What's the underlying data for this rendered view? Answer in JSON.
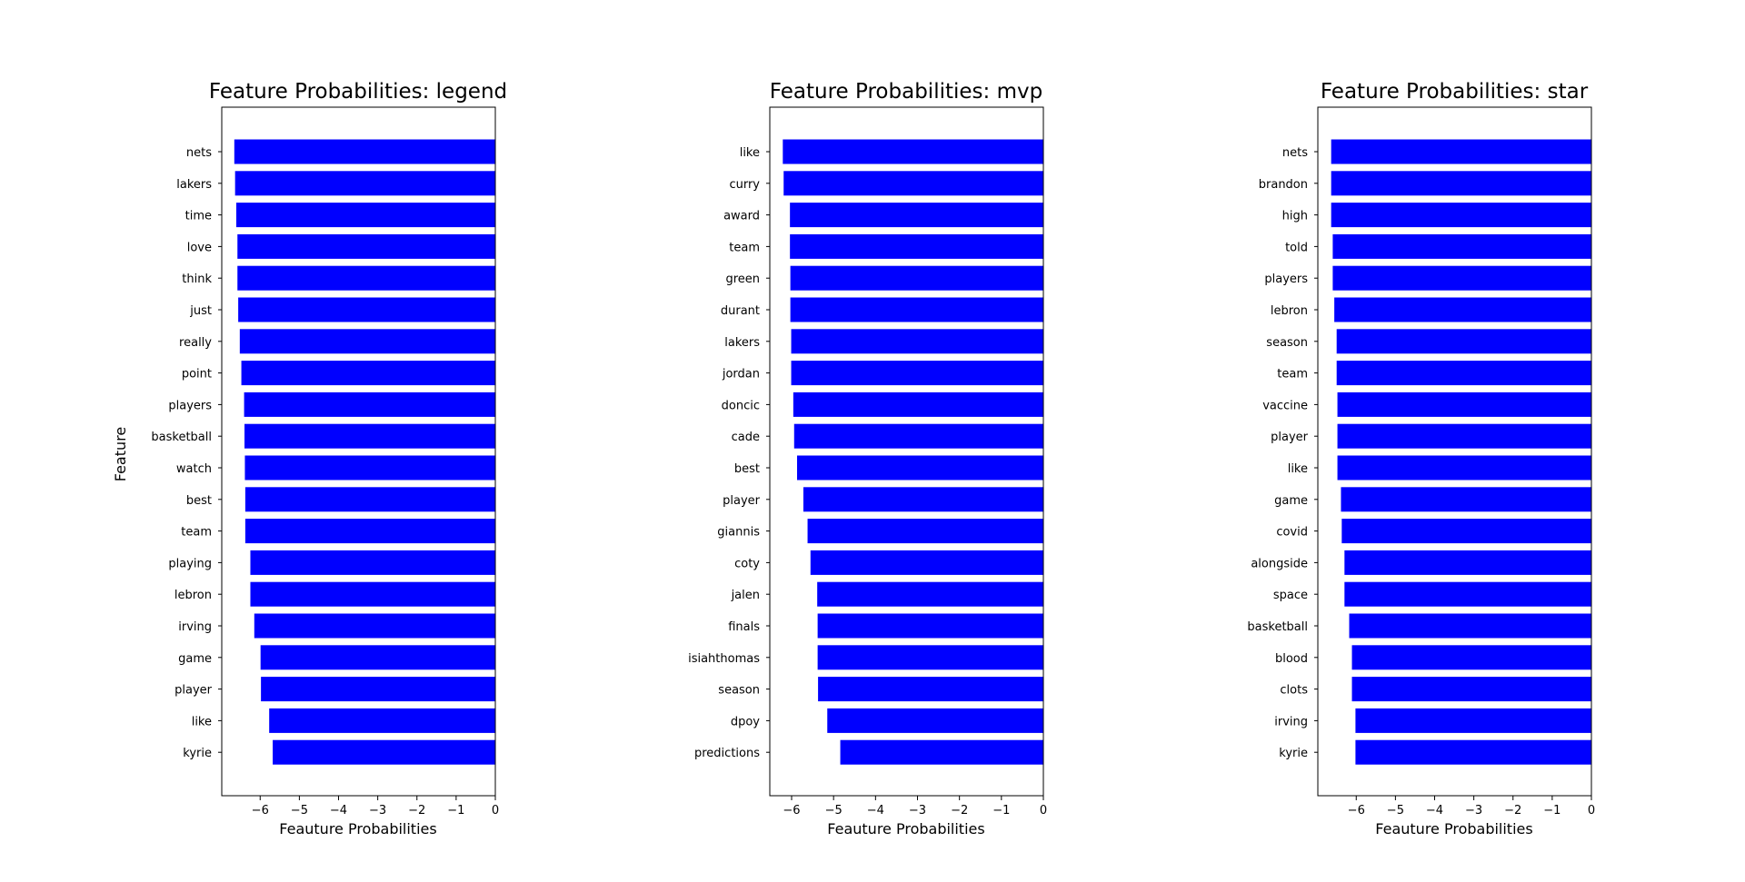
{
  "colors": {
    "bar": "#0000ff",
    "axis": "#000000",
    "background": "#ffffff"
  },
  "chart_data": [
    {
      "type": "bar",
      "orientation": "horizontal",
      "title": "Feature Probabilities: legend",
      "xlabel": "Feauture Probabilities",
      "ylabel": "Feature",
      "xlim": [
        -6.98,
        0
      ],
      "xticks": [
        -6,
        -5,
        -4,
        -3,
        -2,
        -1,
        0
      ],
      "xtick_labels": [
        "−6",
        "−5",
        "−4",
        "−3",
        "−2",
        "−1",
        "0"
      ],
      "categories": [
        "nets",
        "lakers",
        "time",
        "love",
        "think",
        "just",
        "really",
        "point",
        "players",
        "basketball",
        "watch",
        "best",
        "team",
        "playing",
        "lebron",
        "irving",
        "game",
        "player",
        "like",
        "kyrie"
      ],
      "values": [
        -6.66,
        -6.64,
        -6.61,
        -6.58,
        -6.58,
        -6.56,
        -6.52,
        -6.48,
        -6.41,
        -6.4,
        -6.39,
        -6.38,
        -6.38,
        -6.25,
        -6.25,
        -6.15,
        -5.99,
        -5.98,
        -5.77,
        -5.68
      ],
      "grid": false,
      "legend": "none"
    },
    {
      "type": "bar",
      "orientation": "horizontal",
      "title": "Feature Probabilities: mvp",
      "xlabel": "Feauture Probabilities",
      "ylabel": "",
      "xlim": [
        -6.52,
        0
      ],
      "xticks": [
        -6,
        -5,
        -4,
        -3,
        -2,
        -1,
        0
      ],
      "xtick_labels": [
        "−6",
        "−5",
        "−4",
        "−3",
        "−2",
        "−1",
        "0"
      ],
      "categories": [
        "like",
        "curry",
        "award",
        "team",
        "green",
        "durant",
        "lakers",
        "jordan",
        "doncic",
        "cade",
        "best",
        "player",
        "giannis",
        "coty",
        "jalen",
        "finals",
        "isiahthomas",
        "season",
        "dpoy",
        "predictions"
      ],
      "values": [
        -6.21,
        -6.19,
        -6.04,
        -6.04,
        -6.03,
        -6.03,
        -6.01,
        -6.01,
        -5.96,
        -5.94,
        -5.87,
        -5.72,
        -5.62,
        -5.55,
        -5.39,
        -5.38,
        -5.38,
        -5.37,
        -5.15,
        -4.84
      ],
      "grid": false,
      "legend": "none"
    },
    {
      "type": "bar",
      "orientation": "horizontal",
      "title": "Feature Probabilities: star",
      "xlabel": "Feauture Probabilities",
      "ylabel": "",
      "xlim": [
        -6.98,
        0
      ],
      "xticks": [
        -6,
        -5,
        -4,
        -3,
        -2,
        -1,
        0
      ],
      "xtick_labels": [
        "−6",
        "−5",
        "−4",
        "−3",
        "−2",
        "−1",
        "0"
      ],
      "categories": [
        "nets",
        "brandon",
        "high",
        "told",
        "players",
        "lebron",
        "season",
        "team",
        "vaccine",
        "player",
        "like",
        "game",
        "covid",
        "alongside",
        "space",
        "basketball",
        "blood",
        "clots",
        "irving",
        "kyrie"
      ],
      "values": [
        -6.64,
        -6.64,
        -6.64,
        -6.6,
        -6.6,
        -6.56,
        -6.5,
        -6.5,
        -6.48,
        -6.48,
        -6.48,
        -6.39,
        -6.37,
        -6.3,
        -6.3,
        -6.18,
        -6.11,
        -6.11,
        -6.02,
        -6.02
      ],
      "grid": false,
      "legend": "none"
    }
  ]
}
